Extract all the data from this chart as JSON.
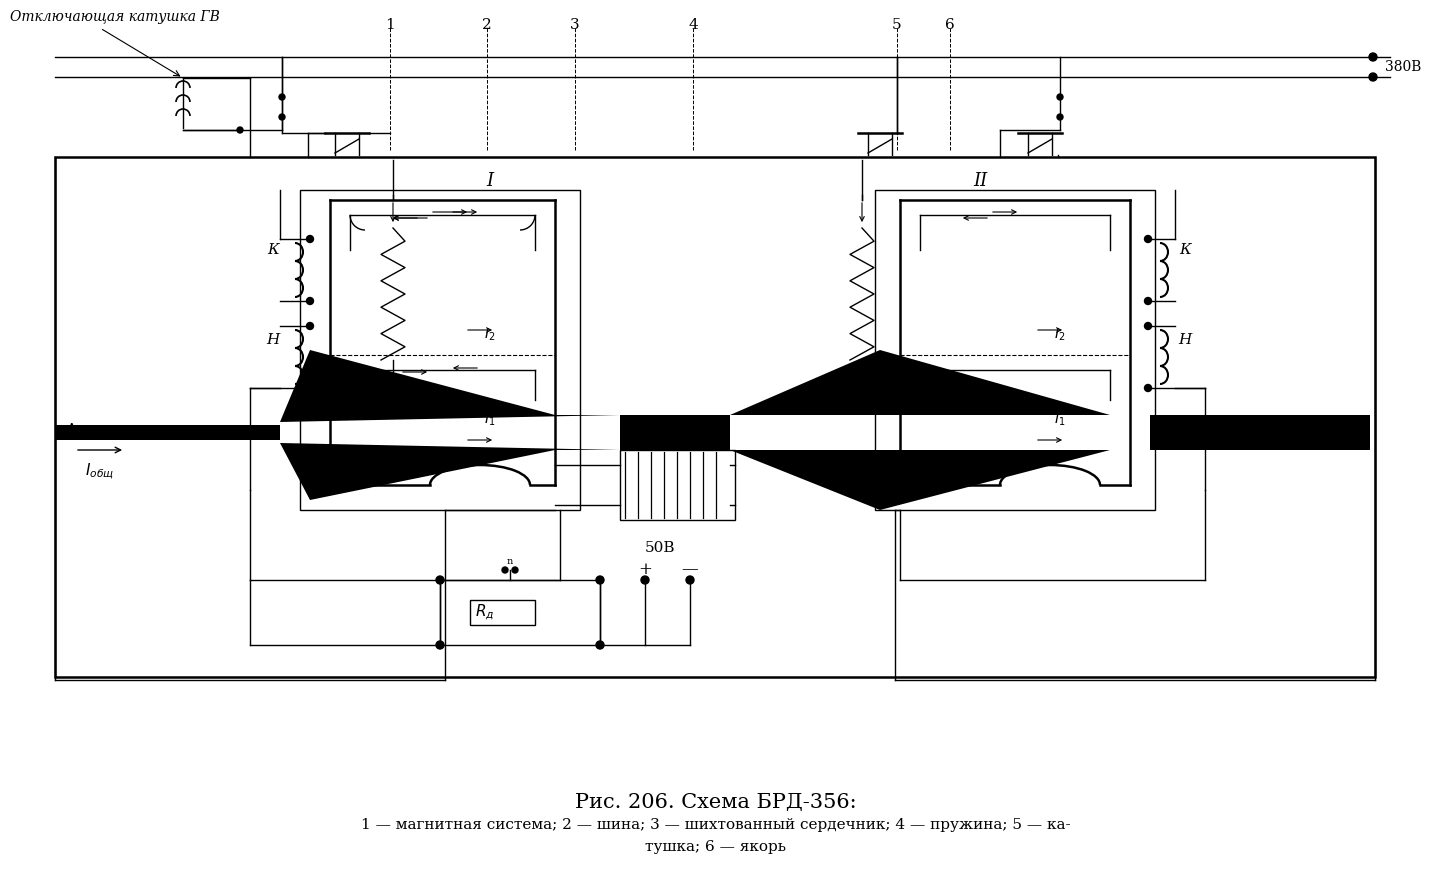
{
  "title": "Рис. 206. Схема БРД-356:",
  "subtitle_line1": "1 — магнитная система; 2 — шина; 3 — шихтованный сердечник; 4 — пружина; 5 — ка-",
  "subtitle_line2": "тушка; 6 — якорь",
  "top_label": "Отключающая катушка ГВ",
  "bg_color": "#ffffff",
  "line_color": "#000000"
}
